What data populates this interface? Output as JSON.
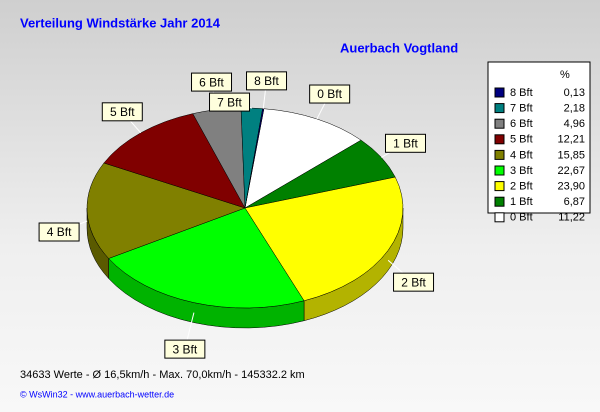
{
  "chart_data": {
    "type": "pie",
    "title": "Verteilung Windstärke  Jahr 2014",
    "subtitle": "Auerbach Vogtland",
    "legend_title": "%",
    "categories": [
      "8 Bft",
      "7 Bft",
      "6 Bft",
      "5 Bft",
      "4 Bft",
      "3 Bft",
      "2 Bft",
      "1 Bft",
      "0 Bft"
    ],
    "values": [
      0.13,
      2.18,
      4.96,
      12.21,
      15.85,
      22.67,
      23.9,
      6.87,
      11.22
    ],
    "value_labels": [
      "0,13",
      "2,18",
      "4,96",
      "12,21",
      "15,85",
      "22,67",
      "23,90",
      "6,87",
      "11,22"
    ],
    "colors": [
      "#000080",
      "#008080",
      "#808080",
      "#800000",
      "#808000",
      "#00ff00",
      "#ffff00",
      "#008000",
      "#ffffff"
    ],
    "annotations": [
      "34633 Werte   -   Ø 16,5km/h  -  Max. 70,0km/h  -   145332.2 km",
      "© WsWin32  -  www.auerbach-wetter.de"
    ]
  }
}
